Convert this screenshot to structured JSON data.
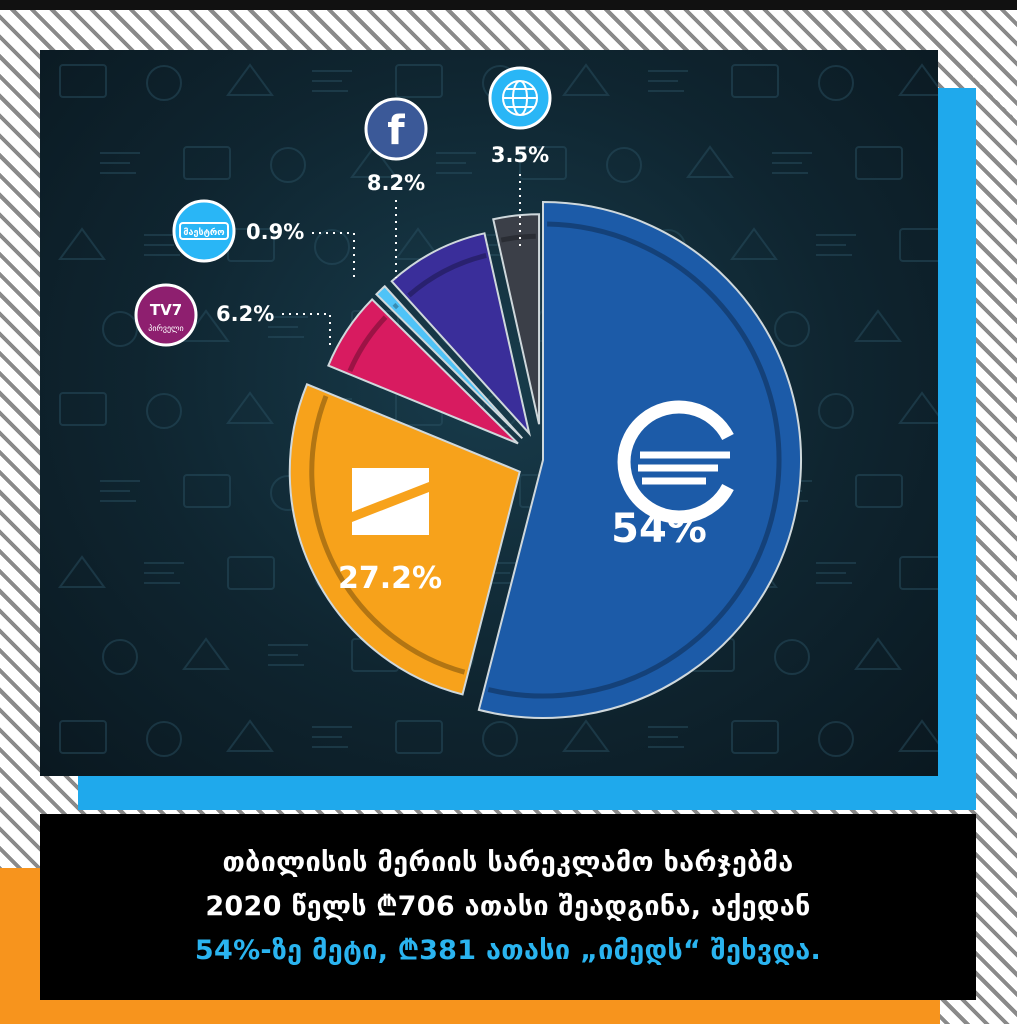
{
  "chart_data": {
    "type": "pie",
    "slices": [
      {
        "key": "imedi",
        "value": 54,
        "label": "54%",
        "color": "#1c5ba8",
        "logo": "imedi-logo",
        "exploded": false
      },
      {
        "key": "rustavi2",
        "value": 27.2,
        "label": "27.2%",
        "color": "#f7a21b",
        "logo": "rustavi2-logo",
        "exploded": true
      },
      {
        "key": "tv7",
        "value": 6.2,
        "label": "6.2%",
        "color": "#d81b60",
        "logo": "tv7-logo",
        "logo_text_top": "TV7",
        "logo_text_bottom": "პირველი",
        "exploded": true
      },
      {
        "key": "maestro",
        "value": 0.9,
        "label": "0.9%",
        "color": "#4fc3f7",
        "logo": "maestro-logo",
        "logo_text": "მაესტრო",
        "exploded": true
      },
      {
        "key": "facebook",
        "value": 8.2,
        "label": "8.2%",
        "color": "#3a2e9a",
        "logo": "facebook-logo",
        "logo_text": "f",
        "exploded": true
      },
      {
        "key": "web",
        "value": 3.5,
        "label": "3.5%",
        "color": "#3b3f48",
        "logo": "globe-icon",
        "exploded": true
      }
    ]
  },
  "caption": {
    "line1": "თბილისის მერიის სარეკლამო ხარჯებმა",
    "line2": "2020 წელს ₾706 ათასი შეადგინა, აქედან",
    "line3": "54%-ზე მეტი, ₾381 ათასი „იმედს“ შეხვდა."
  }
}
